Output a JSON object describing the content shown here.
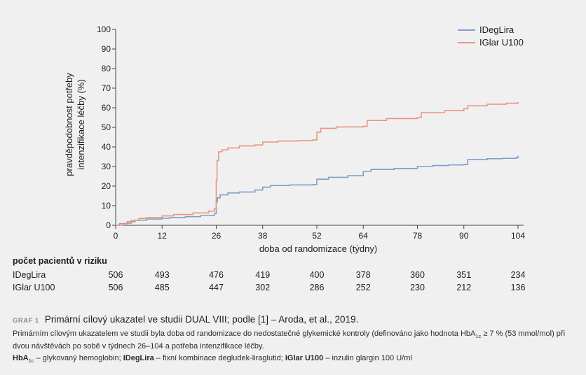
{
  "chart_data": {
    "type": "line",
    "title": "",
    "xlabel": "doba od randomizace (týdny)",
    "ylabel_line1": "pravděpodobnost potřeby",
    "ylabel_line2": "intenzifikace léčby (%)",
    "xlim": [
      0,
      104
    ],
    "ylim": [
      0,
      100
    ],
    "x_ticks": [
      0,
      12,
      26,
      38,
      52,
      64,
      78,
      90,
      104
    ],
    "y_ticks": [
      0,
      10,
      20,
      30,
      40,
      50,
      60,
      70,
      80,
      90,
      100
    ],
    "legend_position": "top-right",
    "series": [
      {
        "name": "IDegLira",
        "color": "#7f9fc6",
        "x": [
          0,
          1,
          3,
          5,
          8,
          12,
          14,
          18,
          22,
          25.5,
          26,
          26.3,
          27,
          29,
          32,
          36,
          38,
          40,
          45,
          51,
          52,
          55,
          60,
          64,
          66,
          72,
          78,
          82,
          86,
          90,
          91,
          96,
          100,
          103.5,
          104
        ],
        "y": [
          0,
          0.8,
          1.8,
          2.6,
          3.2,
          3.6,
          4,
          4.4,
          5,
          6,
          12,
          14,
          15.5,
          16.5,
          17,
          18,
          19.5,
          20.3,
          20.6,
          20.8,
          23.5,
          24.5,
          25.3,
          27.5,
          28.5,
          29,
          30,
          30.5,
          30.8,
          31,
          33.5,
          34,
          34.2,
          34.5,
          35.5
        ]
      },
      {
        "name": "IGlar U100",
        "color": "#e8967a",
        "x": [
          0,
          2,
          4,
          6,
          8,
          12,
          15,
          20,
          24,
          25.5,
          26,
          26.2,
          26.6,
          27.5,
          29,
          32,
          36,
          38,
          42,
          47,
          51,
          52,
          53,
          57,
          64,
          65,
          70,
          78,
          79,
          85,
          90,
          91,
          96,
          101,
          104
        ],
        "y": [
          0,
          1,
          2.5,
          3.5,
          4,
          4.8,
          5.5,
          6.3,
          7.2,
          8.5,
          23,
          33,
          37.5,
          38.5,
          39.5,
          40.5,
          41,
          42.5,
          43,
          43.2,
          43.6,
          47.5,
          49.5,
          50.2,
          50.5,
          53.5,
          54.5,
          55,
          57.5,
          58.5,
          59.5,
          61,
          61.8,
          62.3,
          63
        ]
      }
    ]
  },
  "risk_table": {
    "title": "počet pacientů v riziku",
    "rows": [
      {
        "label": "IDegLira",
        "values": [
          "506",
          "493",
          "476",
          "419",
          "400",
          "378",
          "360",
          "351",
          "234"
        ]
      },
      {
        "label": "IGlar U100",
        "values": [
          "506",
          "485",
          "447",
          "302",
          "286",
          "252",
          "230",
          "212",
          "136"
        ]
      }
    ]
  },
  "caption": {
    "tag": "GRAF 1",
    "title": "Primární cílový ukazatel ve studii DUAL VIII; podle [1] – Aroda, et al., 2019."
  },
  "description": {
    "part1": "Primárním cílovým ukazatelem ve studii byla doba od randomizace do nedostatečné glykemické kontroly (definováno jako hodnota HbA",
    "sub": "1c",
    "part2": " ≥ 7 % (53 mmol/mol) při dvou návštěvách po sobě v týdnech 26–104 a potřeba intenzifikace léčby."
  },
  "abbreviations": {
    "t1": "HbA",
    "t1_sub": "1c",
    "d1": " – glykovaný hemoglobin; ",
    "t2": "IDegLira",
    "d2": " – fixní kombinace degludek-liraglutid; ",
    "t3": "IGlar U100",
    "d3": " – inzulin glargin 100 U/ml"
  }
}
